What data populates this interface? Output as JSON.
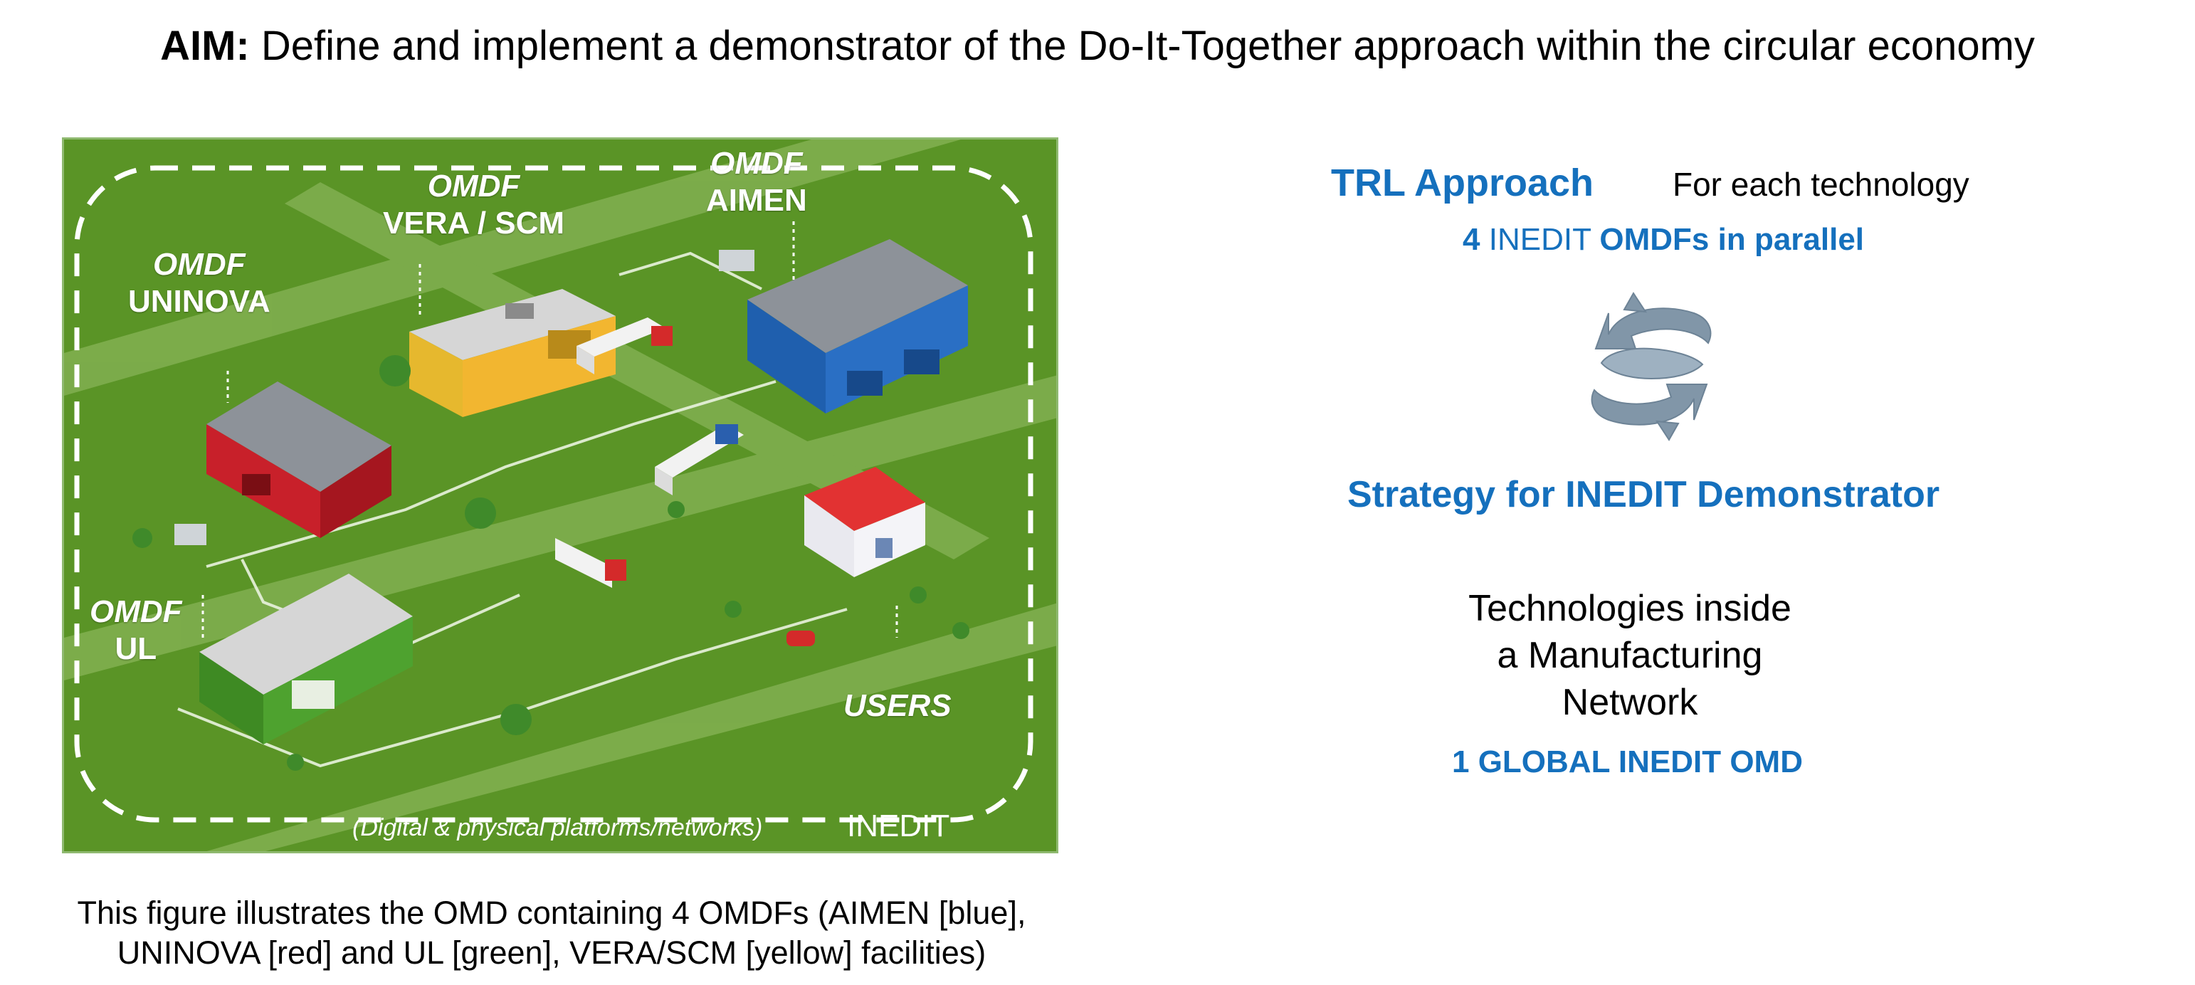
{
  "heading": {
    "aim_label": "AIM:",
    "aim_text": "Define and implement a demonstrator of the Do-It-Together approach within the circular economy"
  },
  "figure": {
    "labels": {
      "aimen_omdf": "OMDF",
      "aimen_name": "AIMEN",
      "vera_omdf": "OMDF",
      "vera_name": "VERA / SCM",
      "uninova_omdf": "OMDF",
      "uninova_name": "UNINOVA",
      "ul_omdf": "OMDF",
      "ul_name": "UL",
      "users": "USERS"
    },
    "platforms_note": "(Digital & physical platforms/networks)",
    "brand": "INEDIT",
    "colors": {
      "background": "#5a9426",
      "aimen": "#2a6fc4",
      "uninova": "#c8202a",
      "ul": "#4ea22f",
      "vera": "#f2b630"
    }
  },
  "caption": {
    "line1": "This figure illustrates the OMD containing 4 OMDFs (AIMEN [blue],",
    "line2": "UNINOVA [red] and UL [green], VERA/SCM [yellow] facilities)"
  },
  "right": {
    "trl_approach": "TRL Approach",
    "for_each": "For each technology",
    "parallel_num": "4",
    "parallel_inedit": "INEDIT",
    "parallel_rest": "OMDFs in parallel",
    "cycle_icon": "cycle-arrows-icon",
    "strategy": "Strategy for INEDIT Demonstrator",
    "tech_line1": "Technologies inside",
    "tech_line2": "a Manufacturing",
    "tech_line3": "Network",
    "global": "1 GLOBAL INEDIT OMD",
    "accent_color": "#1570bd"
  }
}
